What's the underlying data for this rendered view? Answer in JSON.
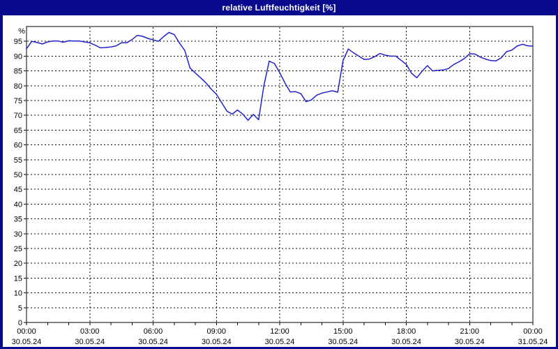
{
  "window": {
    "title": "relative Luftfeuchtigkeit [%]"
  },
  "colors": {
    "frame_border": "#0a0a8e",
    "titlebar_bg": "#0a0a8e",
    "titlebar_text": "#ffffff",
    "plot_bg": "#ffffff",
    "axis": "#000000",
    "grid": "#000000",
    "label_text": "#000000",
    "line": "#2222cc"
  },
  "chart_data": {
    "type": "line",
    "title": "relative Luftfeuchtigkeit [%]",
    "y_unit": "%",
    "ylim": [
      0,
      100
    ],
    "y_ticks": [
      0,
      5,
      10,
      15,
      20,
      25,
      30,
      35,
      40,
      45,
      50,
      55,
      60,
      65,
      70,
      75,
      80,
      85,
      90,
      95
    ],
    "xlim_hours": [
      0,
      24
    ],
    "x_minor_tick_hours": 1,
    "x_ticks": [
      {
        "hour": 0,
        "time": "00:00",
        "date": "30.05.24"
      },
      {
        "hour": 3,
        "time": "03:00",
        "date": "30.05.24"
      },
      {
        "hour": 6,
        "time": "06:00",
        "date": "30.05.24"
      },
      {
        "hour": 9,
        "time": "09:00",
        "date": "30.05.24"
      },
      {
        "hour": 12,
        "time": "12:00",
        "date": "30.05.24"
      },
      {
        "hour": 15,
        "time": "15:00",
        "date": "30.05.24"
      },
      {
        "hour": 18,
        "time": "18:00",
        "date": "30.05.24"
      },
      {
        "hour": 21,
        "time": "21:00",
        "date": "30.05.24"
      },
      {
        "hour": 24,
        "time": "00:00",
        "date": "31.05.24"
      }
    ],
    "grid": "dashed",
    "legend": "none",
    "series": [
      {
        "name": "relative Luftfeuchtigkeit",
        "unit": "%",
        "x_start_hour": 0,
        "x_step_hours": 0.25,
        "values": [
          92.5,
          95.0,
          94.6,
          94.1,
          94.8,
          95.1,
          95.1,
          94.7,
          95.2,
          95.1,
          95.1,
          94.8,
          94.5,
          93.7,
          92.8,
          92.9,
          93.1,
          93.5,
          94.5,
          94.5,
          95.6,
          97.0,
          96.7,
          96.0,
          95.5,
          95.0,
          96.6,
          98.0,
          97.3,
          94.4,
          91.9,
          86.0,
          84.3,
          82.7,
          81.0,
          78.9,
          77.1,
          74.3,
          71.4,
          70.4,
          71.8,
          70.4,
          68.3,
          70.3,
          68.5,
          80.0,
          88.3,
          87.5,
          84.4,
          80.9,
          77.9,
          78.0,
          77.3,
          74.6,
          75.2,
          76.8,
          77.5,
          77.9,
          78.3,
          77.8,
          88.5,
          92.4,
          91.1,
          90.0,
          88.9,
          89.0,
          89.8,
          90.9,
          90.3,
          90.0,
          90.0,
          88.6,
          87.2,
          84.2,
          82.7,
          84.9,
          86.8,
          85.0,
          85.2,
          85.3,
          85.8,
          87.2,
          88.1,
          89.2,
          90.8,
          90.7,
          89.7,
          89.0,
          88.5,
          88.4,
          89.4,
          91.5,
          92.0,
          93.4,
          94.0,
          93.5,
          93.4
        ]
      }
    ]
  }
}
